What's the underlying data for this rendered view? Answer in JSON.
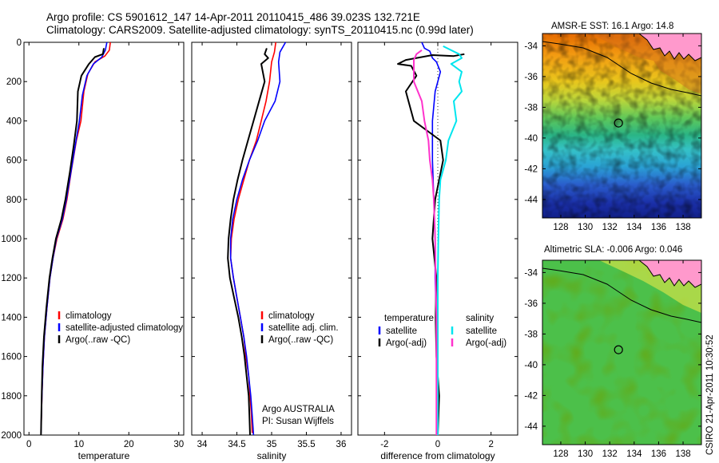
{
  "header": {
    "line1": "Argo profile: CS 5901612_147 14-Apr-2011 20110415_486 39.023S 132.721E",
    "line2": "Climatology: CARS2009. Satellite-adjusted climatology: synTS_20110415.nc (0.99d later)"
  },
  "depth_ticks": [
    "0",
    "200",
    "400",
    "600",
    "800",
    "1000",
    "1200",
    "1400",
    "1600",
    "1800",
    "2000"
  ],
  "colors": {
    "climatology": "#ff0000",
    "satellite": "#0000ff",
    "argo": "#000000",
    "salinity_satellite": "#00e5ee",
    "salinity_argo": "#ff33cc"
  },
  "chart_data": [
    {
      "type": "line",
      "xlabel": "temperature",
      "ylabel": "",
      "xlim": [
        -1,
        31
      ],
      "ylim": [
        2000,
        0
      ],
      "xticks": [
        "0",
        "10",
        "20",
        "30"
      ],
      "x_tick_values": [
        0,
        10,
        20,
        30
      ],
      "legend": {
        "placement": "bottom-right",
        "entries": [
          "climatology",
          "satellite-adjusted climatology",
          "Argo(..raw -QC)"
        ]
      },
      "series": [
        {
          "name": "climatology",
          "color": "#ff0000",
          "width": 1.6,
          "points": [
            [
              16.3,
              0
            ],
            [
              16.1,
              40
            ],
            [
              15.2,
              70
            ],
            [
              13.2,
              100
            ],
            [
              11.8,
              160
            ],
            [
              11.0,
              250
            ],
            [
              10.4,
              400
            ],
            [
              9.5,
              500
            ],
            [
              8.5,
              650
            ],
            [
              7.6,
              800
            ],
            [
              6.8,
              900
            ],
            [
              5.6,
              1000
            ],
            [
              4.8,
              1100
            ],
            [
              4.2,
              1200
            ],
            [
              3.6,
              1350
            ],
            [
              3.1,
              1500
            ],
            [
              2.8,
              1650
            ],
            [
              2.6,
              1800
            ],
            [
              2.45,
              1950
            ]
          ]
        },
        {
          "name": "satellite-adjusted climatology",
          "color": "#0000ff",
          "width": 1.6,
          "points": [
            [
              15.6,
              0
            ],
            [
              15.3,
              40
            ],
            [
              14.6,
              75
            ],
            [
              12.9,
              110
            ],
            [
              11.6,
              170
            ],
            [
              10.7,
              270
            ],
            [
              10.1,
              400
            ],
            [
              9.3,
              520
            ],
            [
              8.4,
              660
            ],
            [
              7.5,
              800
            ],
            [
              6.7,
              900
            ],
            [
              5.5,
              1000
            ],
            [
              4.8,
              1100
            ],
            [
              4.2,
              1200
            ],
            [
              3.6,
              1350
            ],
            [
              3.1,
              1500
            ],
            [
              2.8,
              1650
            ],
            [
              2.6,
              1800
            ],
            [
              2.4,
              1990
            ]
          ]
        },
        {
          "name": "Argo(..raw -QC)",
          "color": "#000000",
          "width": 2,
          "points": [
            [
              15.0,
              30
            ],
            [
              14.8,
              60
            ],
            [
              13.2,
              75
            ],
            [
              12.0,
              110
            ],
            [
              10.5,
              170
            ],
            [
              9.8,
              250
            ],
            [
              9.6,
              400
            ],
            [
              9.0,
              520
            ],
            [
              8.2,
              660
            ],
            [
              7.3,
              800
            ],
            [
              6.5,
              900
            ],
            [
              5.4,
              1000
            ],
            [
              4.7,
              1100
            ],
            [
              4.1,
              1200
            ],
            [
              3.5,
              1350
            ],
            [
              3.0,
              1500
            ],
            [
              2.7,
              1650
            ],
            [
              2.55,
              1800
            ],
            [
              2.4,
              2000
            ]
          ]
        }
      ]
    },
    {
      "type": "line",
      "xlabel": "salinity",
      "ylabel": "",
      "xlim": [
        33.85,
        36.15
      ],
      "ylim": [
        2000,
        0
      ],
      "xticks": [
        "34",
        "34.5",
        "35",
        "35.5",
        "36"
      ],
      "x_tick_values": [
        34,
        34.5,
        35,
        35.5,
        36
      ],
      "legend": {
        "placement": "bottom-right",
        "entries": [
          "climatology",
          "satellite adj. clim.",
          "Argo(..raw -QC)"
        ]
      },
      "annotation": {
        "line1": "Argo AUSTRALIA",
        "line2": "PI: Susan Wijffels"
      },
      "series": [
        {
          "name": "climatology",
          "color": "#ff0000",
          "width": 1.6,
          "points": [
            [
              35.06,
              0
            ],
            [
              35.04,
              50
            ],
            [
              35.0,
              100
            ],
            [
              34.97,
              200
            ],
            [
              34.92,
              300
            ],
            [
              34.85,
              400
            ],
            [
              34.78,
              500
            ],
            [
              34.68,
              600
            ],
            [
              34.6,
              700
            ],
            [
              34.52,
              800
            ],
            [
              34.46,
              900
            ],
            [
              34.42,
              1000
            ],
            [
              34.41,
              1100
            ],
            [
              34.45,
              1200
            ],
            [
              34.5,
              1300
            ],
            [
              34.55,
              1400
            ],
            [
              34.6,
              1500
            ],
            [
              34.63,
              1600
            ],
            [
              34.67,
              1700
            ],
            [
              34.69,
              1800
            ],
            [
              34.71,
              1900
            ],
            [
              34.72,
              1990
            ]
          ]
        },
        {
          "name": "satellite adj. clim.",
          "color": "#0000ff",
          "width": 1.6,
          "points": [
            [
              35.2,
              0
            ],
            [
              35.12,
              50
            ],
            [
              35.1,
              100
            ],
            [
              35.12,
              200
            ],
            [
              35.05,
              300
            ],
            [
              34.9,
              400
            ],
            [
              34.8,
              500
            ],
            [
              34.68,
              600
            ],
            [
              34.58,
              700
            ],
            [
              34.5,
              800
            ],
            [
              34.44,
              900
            ],
            [
              34.41,
              1000
            ],
            [
              34.41,
              1100
            ],
            [
              34.45,
              1200
            ],
            [
              34.5,
              1300
            ],
            [
              34.55,
              1400
            ],
            [
              34.6,
              1500
            ],
            [
              34.64,
              1600
            ],
            [
              34.67,
              1700
            ],
            [
              34.7,
              1800
            ],
            [
              34.72,
              1900
            ],
            [
              34.74,
              2000
            ]
          ]
        },
        {
          "name": "Argo(..raw -QC)",
          "color": "#000000",
          "width": 2,
          "points": [
            [
              34.93,
              30
            ],
            [
              34.9,
              60
            ],
            [
              34.95,
              80
            ],
            [
              34.85,
              110
            ],
            [
              34.9,
              200
            ],
            [
              34.82,
              300
            ],
            [
              34.74,
              400
            ],
            [
              34.66,
              500
            ],
            [
              34.58,
              600
            ],
            [
              34.51,
              700
            ],
            [
              34.45,
              800
            ],
            [
              34.41,
              900
            ],
            [
              34.38,
              1000
            ],
            [
              34.37,
              1100
            ],
            [
              34.4,
              1200
            ],
            [
              34.46,
              1300
            ],
            [
              34.52,
              1400
            ],
            [
              34.57,
              1500
            ],
            [
              34.61,
              1600
            ],
            [
              34.64,
              1700
            ],
            [
              34.67,
              1800
            ],
            [
              34.68,
              1900
            ],
            [
              34.69,
              2000
            ]
          ]
        }
      ]
    },
    {
      "type": "line",
      "xlabel": "difference from climatology",
      "ylabel": "",
      "xlim": [
        -3,
        3
      ],
      "ylim": [
        2000,
        0
      ],
      "xticks": [
        "-2",
        "0",
        "2"
      ],
      "x_tick_values": [
        -2,
        0,
        2
      ],
      "zero_line": 0,
      "legend": {
        "placement": "bottom",
        "groups": [
          {
            "title": "temperature",
            "entries": [
              {
                "label": "satellite",
                "color": "#0000ff"
              },
              {
                "label": "Argo(-adj)",
                "color": "#000000"
              }
            ]
          },
          {
            "title": "salinity",
            "entries": [
              {
                "label": "satellite",
                "color": "#00e5ee"
              },
              {
                "label": "Argo(-adj)",
                "color": "#ff33cc"
              }
            ]
          }
        ]
      },
      "series": [
        {
          "name": "temperature satellite",
          "color": "#0000ff",
          "width": 1.6,
          "points": [
            [
              -0.6,
              0
            ],
            [
              -0.5,
              30
            ],
            [
              -0.3,
              45
            ],
            [
              -0.2,
              80
            ],
            [
              -0.05,
              100
            ],
            [
              0.1,
              150
            ],
            [
              -0.1,
              250
            ],
            [
              -0.2,
              400
            ],
            [
              -0.2,
              600
            ],
            [
              -0.15,
              800
            ],
            [
              -0.1,
              1000
            ],
            [
              -0.1,
              1200
            ],
            [
              -0.05,
              1400
            ],
            [
              -0.02,
              1600
            ],
            [
              0.0,
              1800
            ],
            [
              0.0,
              2000
            ]
          ]
        },
        {
          "name": "temperature Argo(-adj)",
          "color": "#000000",
          "width": 2,
          "points": [
            [
              1.0,
              60
            ],
            [
              0.6,
              70
            ],
            [
              -0.2,
              65
            ],
            [
              -1.2,
              90
            ],
            [
              -1.5,
              110
            ],
            [
              -1.0,
              120
            ],
            [
              -0.8,
              170
            ],
            [
              -1.2,
              250
            ],
            [
              -0.9,
              400
            ],
            [
              0.1,
              500
            ],
            [
              0.2,
              600
            ],
            [
              -0.1,
              800
            ],
            [
              -0.2,
              1000
            ],
            [
              -0.05,
              1200
            ],
            [
              -0.08,
              1400
            ],
            [
              -0.05,
              1600
            ],
            [
              0.05,
              1800
            ],
            [
              0.0,
              2000
            ]
          ]
        },
        {
          "name": "salinity satellite",
          "color": "#00e5ee",
          "width": 2,
          "points": [
            [
              0.2,
              20
            ],
            [
              0.8,
              60
            ],
            [
              0.9,
              80
            ],
            [
              0.5,
              110
            ],
            [
              0.9,
              150
            ],
            [
              0.8,
              200
            ],
            [
              0.9,
              250
            ],
            [
              0.6,
              300
            ],
            [
              0.7,
              400
            ],
            [
              0.4,
              500
            ],
            [
              0.3,
              600
            ],
            [
              0.1,
              700
            ],
            [
              0.05,
              800
            ],
            [
              0.02,
              1000
            ],
            [
              0.0,
              1200
            ],
            [
              0.0,
              1400
            ],
            [
              0.0,
              1600
            ],
            [
              0.0,
              1800
            ],
            [
              0.0,
              2000
            ]
          ]
        },
        {
          "name": "salinity Argo(-adj)",
          "color": "#ff33cc",
          "width": 2,
          "points": [
            [
              -0.6,
              40
            ],
            [
              -0.8,
              60
            ],
            [
              -0.9,
              90
            ],
            [
              -0.9,
              200
            ],
            [
              -0.6,
              300
            ],
            [
              -0.5,
              400
            ],
            [
              -0.35,
              500
            ],
            [
              -0.3,
              600
            ],
            [
              -0.2,
              700
            ],
            [
              -0.15,
              800
            ],
            [
              -0.1,
              1000
            ],
            [
              -0.08,
              1200
            ],
            [
              -0.05,
              1400
            ],
            [
              -0.05,
              1600
            ],
            [
              -0.05,
              1800
            ],
            [
              -0.05,
              2000
            ]
          ]
        }
      ]
    },
    {
      "type": "heatmap",
      "title": "AMSR-E SST: 16.1  Argo: 14.8",
      "xticks": [
        "128",
        "130",
        "132",
        "134",
        "136",
        "138"
      ],
      "x_tick_values": [
        128,
        130,
        132,
        134,
        136,
        138
      ],
      "yticks": [
        "-34",
        "-36",
        "-38",
        "-40",
        "-42",
        "-44"
      ],
      "y_tick_values": [
        -34,
        -36,
        -38,
        -40,
        -42,
        -44
      ],
      "xlim": [
        126.5,
        139.5
      ],
      "ylim": [
        -45.2,
        -33.2
      ],
      "marker": {
        "lon": 132.721,
        "lat": -39.023
      }
    },
    {
      "type": "heatmap",
      "title": "Altimetric SLA: -0.006  Argo: 0.046",
      "xticks": [
        "128",
        "130",
        "132",
        "134",
        "136",
        "138"
      ],
      "x_tick_values": [
        128,
        130,
        132,
        134,
        136,
        138
      ],
      "yticks": [
        "-34",
        "-36",
        "-38",
        "-40",
        "-42",
        "-44"
      ],
      "y_tick_values": [
        -34,
        -36,
        -38,
        -40,
        -42,
        -44
      ],
      "xlim": [
        126.5,
        139.5
      ],
      "ylim": [
        -45.2,
        -33.2
      ],
      "marker": {
        "lon": 132.721,
        "lat": -39.023
      }
    }
  ],
  "footer": {
    "stamp": "CSIRO 21-Apr-2011 10:30:52"
  }
}
